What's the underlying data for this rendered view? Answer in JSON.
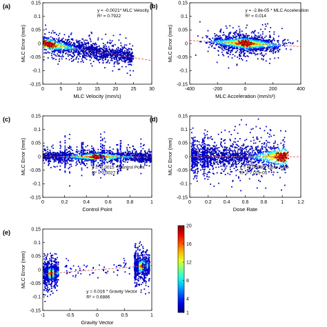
{
  "chart_data": [
    {
      "id": "a",
      "type": "scatter",
      "panel_label": "(a)",
      "xlabel": "MLC Velocity (mm/s)",
      "ylabel": "MLC Error (mm)",
      "xlim": [
        0,
        30
      ],
      "ylim": [
        -0.15,
        0.15
      ],
      "xticks": [
        "0",
        "5",
        "10",
        "15",
        "20",
        "25",
        "30"
      ],
      "yticks": [
        "-0.15",
        "-0.1",
        "-0.05",
        "0",
        "0.05",
        "0.1",
        "0.15"
      ],
      "equation": "y = -0.0021* MLC Velocity",
      "r2": "R² = 0.7922",
      "fit": {
        "slope": -0.0021,
        "intercept": 0,
        "x_range": [
          0,
          30
        ]
      },
      "density": {
        "x_range": [
          0,
          25
        ],
        "center_slope": -0.0021,
        "spread": 0.012,
        "hot_x": 1.5
      }
    },
    {
      "id": "b",
      "type": "scatter",
      "panel_label": "(b)",
      "xlabel": "MLC Acceleration (mm/s²)",
      "ylabel": "MLC Error (mm)",
      "xlim": [
        -400,
        400
      ],
      "ylim": [
        -0.15,
        0.15
      ],
      "xticks": [
        "-400",
        "-200",
        "0",
        "200",
        "400"
      ],
      "yticks": [
        "-0.15",
        "-0.1",
        "-0.05",
        "0",
        "0.05",
        "0.1",
        "0.15"
      ],
      "equation": "y = -2.8e-05 * MLC Acceleration",
      "r2": "R² = 0.014",
      "fit": {
        "slope": -2.8e-05,
        "intercept": 0,
        "x_range": [
          -400,
          400
        ]
      },
      "density": {
        "x_range": [
          -390,
          390
        ],
        "center_slope": -2.8e-05,
        "spread": 0.012,
        "hot_x": 0
      }
    },
    {
      "id": "c",
      "type": "scatter",
      "panel_label": "(c)",
      "xlabel": "Control Point",
      "ylabel": "MLC Error (mm)",
      "xlim": [
        0,
        1
      ],
      "ylim": [
        -0.15,
        0.15
      ],
      "xticks": [
        "0",
        "0.2",
        "0.4",
        "0.6",
        "0.8",
        "1"
      ],
      "yticks": [
        "-0.15",
        "-0.1",
        "-0.05",
        "0",
        "0.05",
        "0.1",
        "0.15"
      ],
      "equation": "y = -0.0015 * Control Point",
      "r2": "R² = 0.0027",
      "fit": {
        "slope": -0.0015,
        "intercept": 0,
        "x_range": [
          0,
          1
        ]
      },
      "density": {
        "x_range": [
          0,
          1
        ],
        "center_slope": -0.0015,
        "spread": 0.008,
        "hot_x": 0.5
      }
    },
    {
      "id": "d",
      "type": "scatter",
      "panel_label": "(d)",
      "xlabel": "Dose Rate",
      "ylabel": "MLC Error (mm)",
      "xlim": [
        0,
        1.2
      ],
      "ylim": [
        -0.15,
        0.15
      ],
      "xticks": [
        "0",
        "0.2",
        "0.4",
        "0.6",
        "0.8",
        "1",
        "1.2"
      ],
      "yticks": [
        "-0.15",
        "-0.1",
        "-0.05",
        "0",
        "0.05",
        "0.1",
        "0.15"
      ],
      "equation": "y = -0.00046* Dose Rate",
      "r2": "R² = 7.01e-05",
      "fit": {
        "slope": -0.00046,
        "intercept": 0,
        "x_range": [
          0,
          1.2
        ]
      },
      "density": {
        "x_range": [
          0.02,
          1.05
        ],
        "center_slope": -0.00046,
        "spread": 0.02,
        "hot_x": 1.0
      }
    },
    {
      "id": "e",
      "type": "scatter",
      "panel_label": "(e)",
      "xlabel": "Gravity Vector",
      "ylabel": "MLC Error (mm)",
      "xlim": [
        -1,
        1
      ],
      "ylim": [
        -0.15,
        0.15
      ],
      "xticks": [
        "-1",
        "-0.5",
        "0",
        "0.5",
        "1"
      ],
      "yticks": [
        "-0.15",
        "-0.1",
        "-0.05",
        "0",
        "0.05",
        "0.1",
        "0.15"
      ],
      "equation": "y = 0.016 * Gravity Vector",
      "r2": "R² = 0.6886",
      "fit": {
        "slope": 0.016,
        "intercept": 0,
        "x_range": [
          -1,
          1
        ]
      },
      "density": {
        "clusters": [
          -0.85,
          0.82
        ],
        "center_slope": 0.016,
        "spread": 0.01
      }
    }
  ],
  "colorbar": {
    "range": [
      1,
      20
    ],
    "ticks": [
      "20",
      "16",
      "12",
      "8",
      "4",
      "1"
    ],
    "colormap": "jet"
  },
  "colors": {
    "fit_line": "#d9534f",
    "axis": "#000000"
  }
}
